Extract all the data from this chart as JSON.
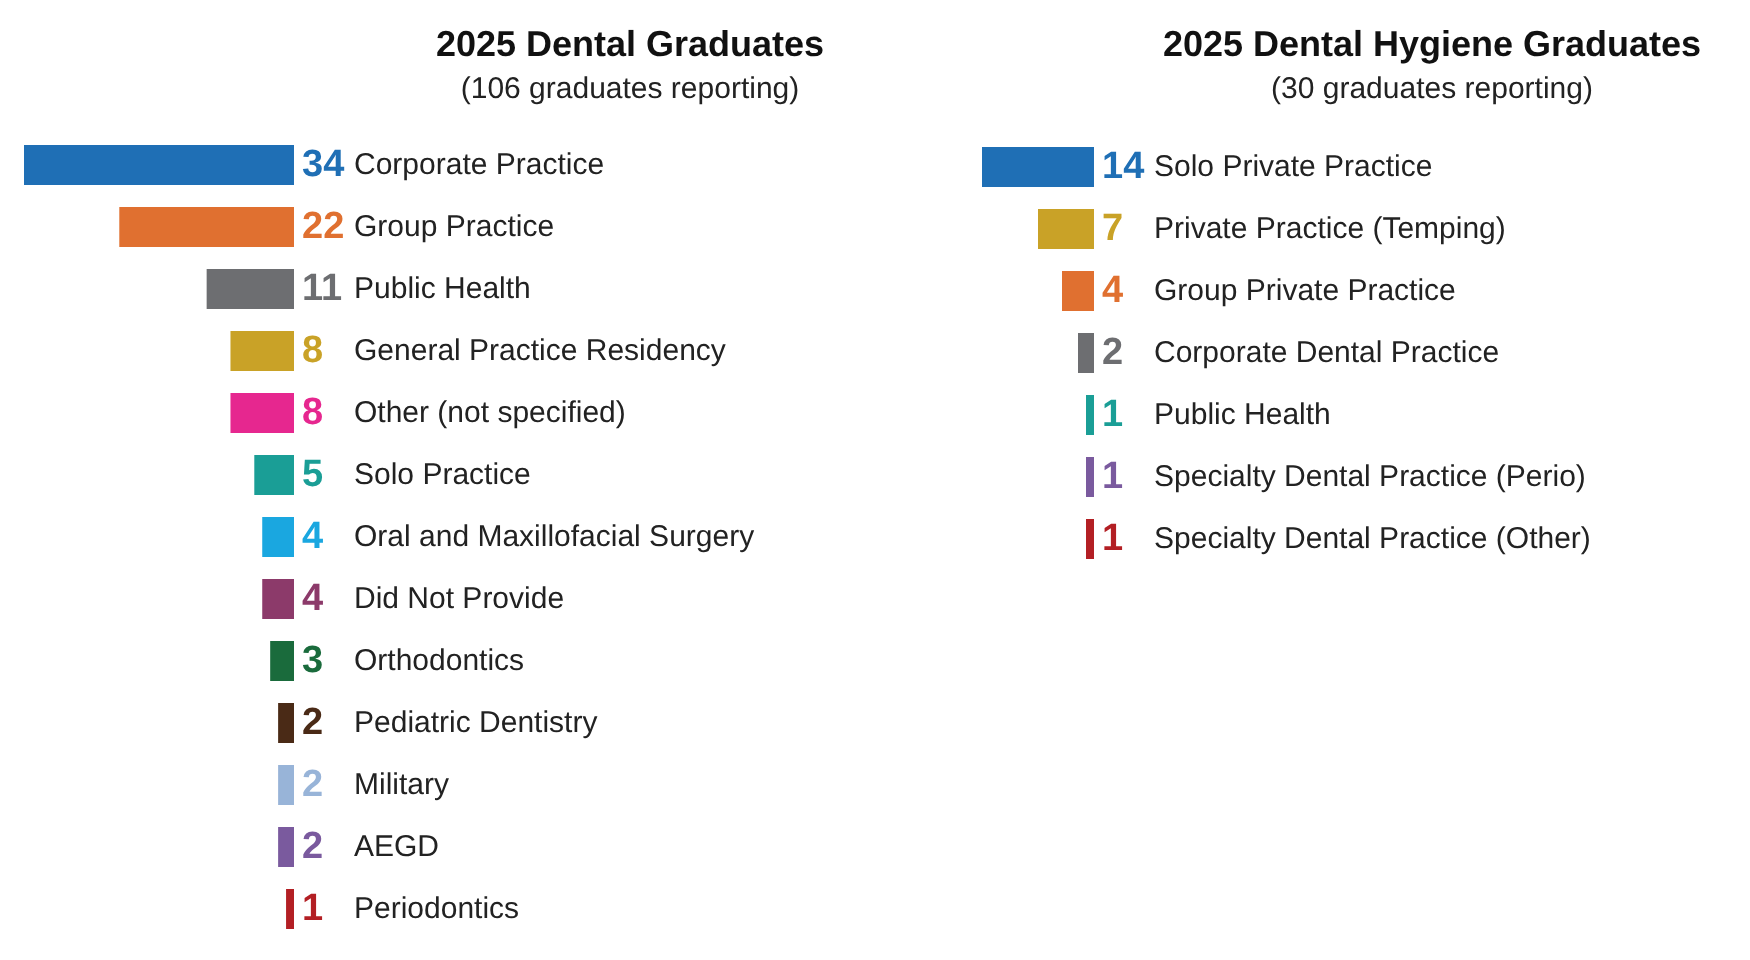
{
  "chart_data": [
    {
      "type": "bar",
      "orientation": "horizontal",
      "title": "2025 Dental Graduates",
      "subtitle": "(106 graduates reporting)",
      "categories": [
        "Corporate Practice",
        "Group Practice",
        "Public Health",
        "General Practice Residency",
        "Other (not specified)",
        "Solo Practice",
        "Oral and Maxillofacial Surgery",
        "Did Not Provide",
        "Orthodontics",
        "Pediatric Dentistry",
        "Military",
        "AEGD",
        "Periodontics"
      ],
      "values": [
        34,
        22,
        11,
        8,
        8,
        5,
        4,
        4,
        3,
        2,
        2,
        2,
        1
      ],
      "colors": [
        "#1f6fb5",
        "#e07030",
        "#6d6e71",
        "#c9a227",
        "#e6278f",
        "#1a9e96",
        "#1aa7e0",
        "#8c3a6a",
        "#1a6b3c",
        "#4a2a16",
        "#98b4d8",
        "#7a5a9e",
        "#b31f24"
      ],
      "xlim": [
        34,
        0
      ],
      "data_labels": true
    },
    {
      "type": "bar",
      "orientation": "horizontal",
      "title": "2025 Dental Hygiene Graduates",
      "subtitle": "(30 graduates reporting)",
      "categories": [
        "Solo Private Practice",
        "Private Practice (Temping)",
        "Group Private Practice",
        "Corporate Dental Practice",
        "Public Health",
        "Specialty Dental Practice (Perio)",
        "Specialty Dental Practice (Other)"
      ],
      "values": [
        14,
        7,
        4,
        2,
        1,
        1,
        1
      ],
      "colors": [
        "#1f6fb5",
        "#c9a227",
        "#e07030",
        "#6d6e71",
        "#1a9e96",
        "#7a5a9e",
        "#b31f24"
      ],
      "xlim": [
        14,
        0
      ],
      "data_labels": true
    }
  ]
}
